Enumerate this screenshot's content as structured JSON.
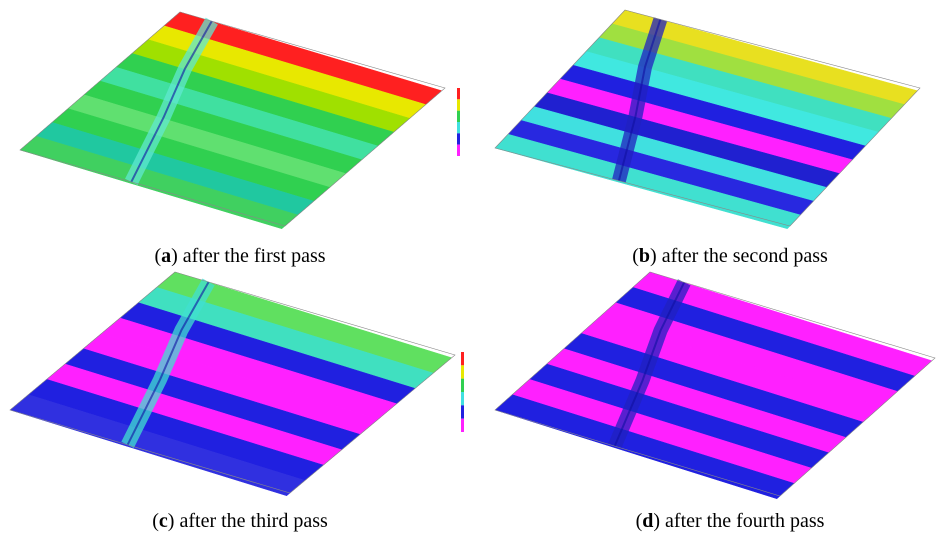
{
  "panels": [
    {
      "open": "(",
      "label": "a",
      "close": ")",
      "text": "after the first pass"
    },
    {
      "open": "(",
      "label": "b",
      "close": ")",
      "text": "after the second pass"
    },
    {
      "open": "(",
      "label": "c",
      "close": ")",
      "text": "after the third pass"
    },
    {
      "open": "(",
      "label": "d",
      "close": ")",
      "text": "after the fourth pass"
    }
  ]
}
